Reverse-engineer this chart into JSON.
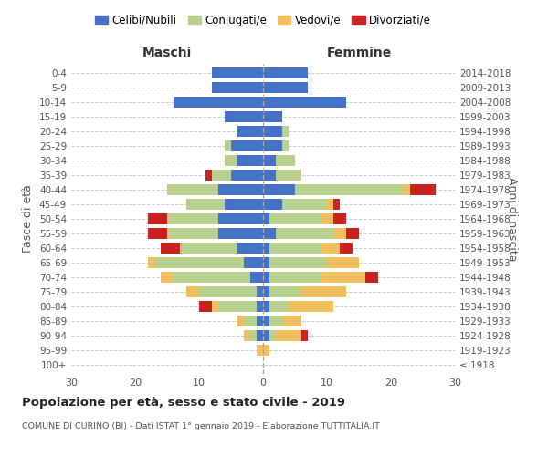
{
  "age_groups": [
    "100+",
    "95-99",
    "90-94",
    "85-89",
    "80-84",
    "75-79",
    "70-74",
    "65-69",
    "60-64",
    "55-59",
    "50-54",
    "45-49",
    "40-44",
    "35-39",
    "30-34",
    "25-29",
    "20-24",
    "15-19",
    "10-14",
    "5-9",
    "0-4"
  ],
  "birth_years": [
    "≤ 1918",
    "1919-1923",
    "1924-1928",
    "1929-1933",
    "1934-1938",
    "1939-1943",
    "1944-1948",
    "1949-1953",
    "1954-1958",
    "1959-1963",
    "1964-1968",
    "1969-1973",
    "1974-1978",
    "1979-1983",
    "1984-1988",
    "1989-1993",
    "1994-1998",
    "1999-2003",
    "2004-2008",
    "2009-2013",
    "2014-2018"
  ],
  "maschi": {
    "celibi": [
      0,
      0,
      1,
      1,
      1,
      1,
      2,
      3,
      4,
      7,
      7,
      6,
      7,
      5,
      4,
      5,
      4,
      6,
      14,
      8,
      8
    ],
    "coniugati": [
      0,
      0,
      1,
      2,
      6,
      9,
      12,
      14,
      9,
      8,
      8,
      6,
      8,
      3,
      2,
      1,
      0,
      0,
      0,
      0,
      0
    ],
    "vedovi": [
      0,
      1,
      1,
      1,
      1,
      2,
      2,
      1,
      0,
      0,
      0,
      0,
      0,
      0,
      0,
      0,
      0,
      0,
      0,
      0,
      0
    ],
    "divorziati": [
      0,
      0,
      0,
      0,
      2,
      0,
      0,
      0,
      3,
      3,
      3,
      0,
      0,
      1,
      0,
      0,
      0,
      0,
      0,
      0,
      0
    ]
  },
  "femmine": {
    "nubili": [
      0,
      0,
      1,
      1,
      1,
      1,
      1,
      1,
      1,
      2,
      1,
      3,
      5,
      2,
      2,
      3,
      3,
      3,
      13,
      7,
      7
    ],
    "coniugate": [
      0,
      0,
      1,
      2,
      3,
      5,
      8,
      9,
      8,
      9,
      8,
      7,
      17,
      4,
      3,
      1,
      1,
      0,
      0,
      0,
      0
    ],
    "vedove": [
      0,
      1,
      4,
      3,
      7,
      7,
      7,
      5,
      3,
      2,
      2,
      1,
      1,
      0,
      0,
      0,
      0,
      0,
      0,
      0,
      0
    ],
    "divorziate": [
      0,
      0,
      1,
      0,
      0,
      0,
      2,
      0,
      2,
      2,
      2,
      1,
      4,
      0,
      0,
      0,
      0,
      0,
      0,
      0,
      0
    ]
  },
  "colors": {
    "celibi": "#4472c4",
    "coniugati": "#b8d08d",
    "vedovi": "#f0c060",
    "divorziati": "#cc2222"
  },
  "xlim": 30,
  "title": "Popolazione per età, sesso e stato civile - 2019",
  "subtitle": "COMUNE DI CURINO (BI) - Dati ISTAT 1° gennaio 2019 - Elaborazione TUTTITALIA.IT",
  "ylabel_left": "Fasce di età",
  "ylabel_right": "Anni di nascita",
  "xlabel_left": "Maschi",
  "xlabel_right": "Femmine",
  "legend_labels": [
    "Celibi/Nubili",
    "Coniugati/e",
    "Vedovi/e",
    "Divorziati/e"
  ],
  "background_color": "#ffffff",
  "grid_color": "#cccccc"
}
